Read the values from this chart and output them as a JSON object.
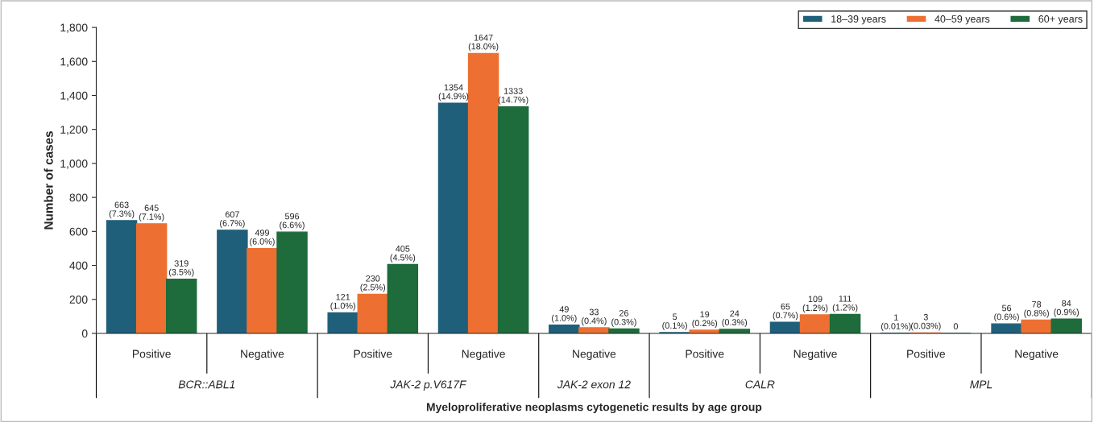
{
  "chart_data": {
    "type": "bar",
    "xlabel": "Myeloproliferative neoplasms cytogenetic results by age group",
    "ylabel": "Number of cases",
    "categories": [
      "Positive",
      "Negative",
      "Positive",
      "Negative",
      "Negative",
      "Positive",
      "Negative",
      "Positive",
      "Negative"
    ],
    "annotations": [
      "BCR::ABL1",
      "JAK-2 p.V617F",
      "JAK-2 exon 12",
      "CALR",
      "MPL"
    ],
    "series": [
      {
        "name": "18–39 years",
        "color": "#1f5f7a",
        "values": [
          663,
          607,
          121,
          1354,
          49,
          5,
          65,
          1,
          56
        ],
        "value_labels": [
          "663\n(7.3%)",
          "607\n(6.7%)",
          "121\n(1.0%)",
          "1354\n(14.9%)",
          "49\n(1.0%)",
          "5\n(0.1%)",
          "65\n(0.7%)",
          "1\n(0.01%)",
          "56\n(0.6%)"
        ]
      },
      {
        "name": "40–59 years",
        "color": "#ed7032",
        "values": [
          645,
          499,
          230,
          1647,
          33,
          19,
          109,
          3,
          78
        ],
        "value_labels": [
          "645\n(7.1%)",
          "499\n(6.0%)",
          "230\n(2.5%)",
          "1647\n(18.0%)",
          "33\n(0.4%)",
          "19\n(0.2%)",
          "109\n(1.2%)",
          "3\n(0.03%)",
          "78\n(0.8%)"
        ]
      },
      {
        "name": "60+ years",
        "color": "#1e6b3c",
        "values": [
          319,
          596,
          405,
          1333,
          26,
          24,
          111,
          0,
          84
        ],
        "value_labels": [
          "319\n(3.5%)",
          "596\n(6.6%)",
          "405\n(4.5%)",
          "1333\n(14.7%)",
          "26\n(0.3%)",
          "24\n(0.3%)",
          "111\n(1.2%)",
          "0",
          "84\n(0.9%)"
        ]
      }
    ],
    "ylim": [
      0,
      1800
    ],
    "yticks": [
      0,
      200,
      400,
      600,
      800,
      {
        "value": 1000,
        "label": "1,000"
      },
      {
        "value": 1200,
        "label": "1,200"
      },
      {
        "value": 1400,
        "label": "1,400"
      },
      {
        "value": 1600,
        "label": "1,600"
      },
      {
        "value": 1800,
        "label": "1,800"
      }
    ],
    "grid": false,
    "legend": "top right"
  }
}
